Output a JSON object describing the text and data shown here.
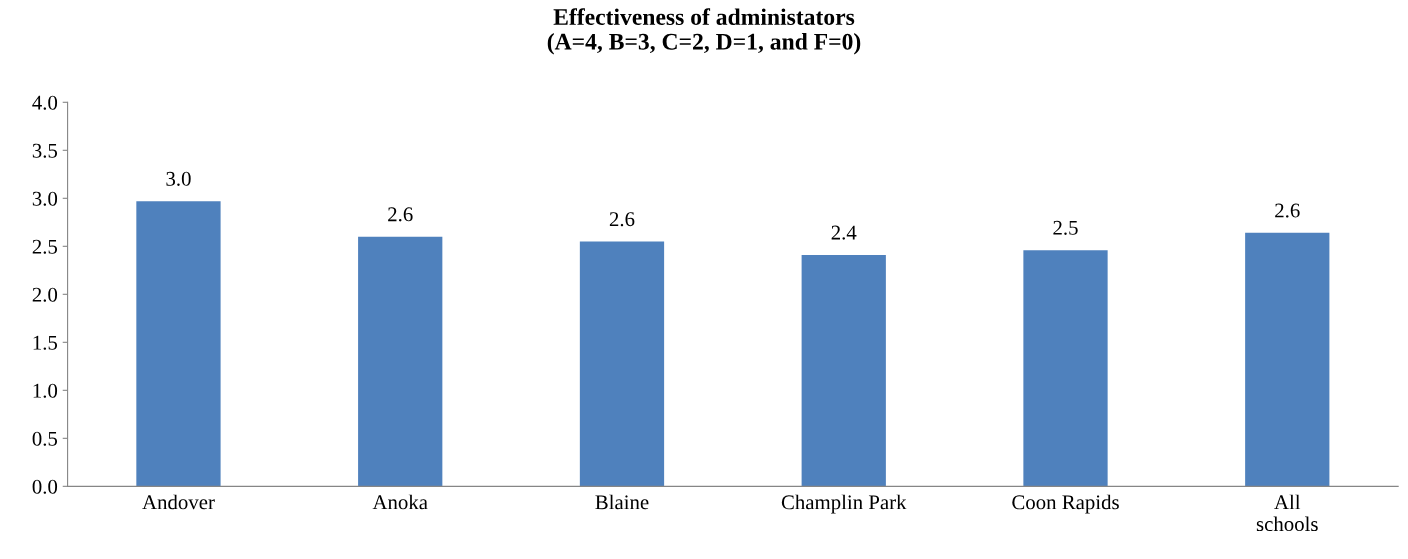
{
  "chart_data": {
    "type": "bar",
    "title": "Effectiveness of administators\n(A=4, B=3, C=2, D=1, and F=0)",
    "categories": [
      "Andover",
      "Anoka",
      "Blaine",
      "Champlin Park",
      "Coon Rapids",
      "All\nschools"
    ],
    "values": [
      2.97,
      2.6,
      2.55,
      2.41,
      2.46,
      2.64
    ],
    "value_labels": [
      "3.0",
      "2.6",
      "2.6",
      "2.4",
      "2.5",
      "2.6"
    ],
    "color": "#4f81bd",
    "ylim": [
      0,
      4.0
    ],
    "yticks": [
      {
        "value": 0,
        "label": "0.0"
      },
      {
        "value": 0.5,
        "label": "0.5"
      },
      {
        "value": 1.0,
        "label": "1.0"
      },
      {
        "value": 1.5,
        "label": "1.5"
      },
      {
        "value": 2.0,
        "label": "2.0"
      },
      {
        "value": 2.5,
        "label": "2.5"
      },
      {
        "value": 3.0,
        "label": "3.0"
      },
      {
        "value": 3.5,
        "label": "3.5"
      },
      {
        "value": 4.0,
        "label": "4.0"
      }
    ],
    "grid": false,
    "legend": false
  }
}
